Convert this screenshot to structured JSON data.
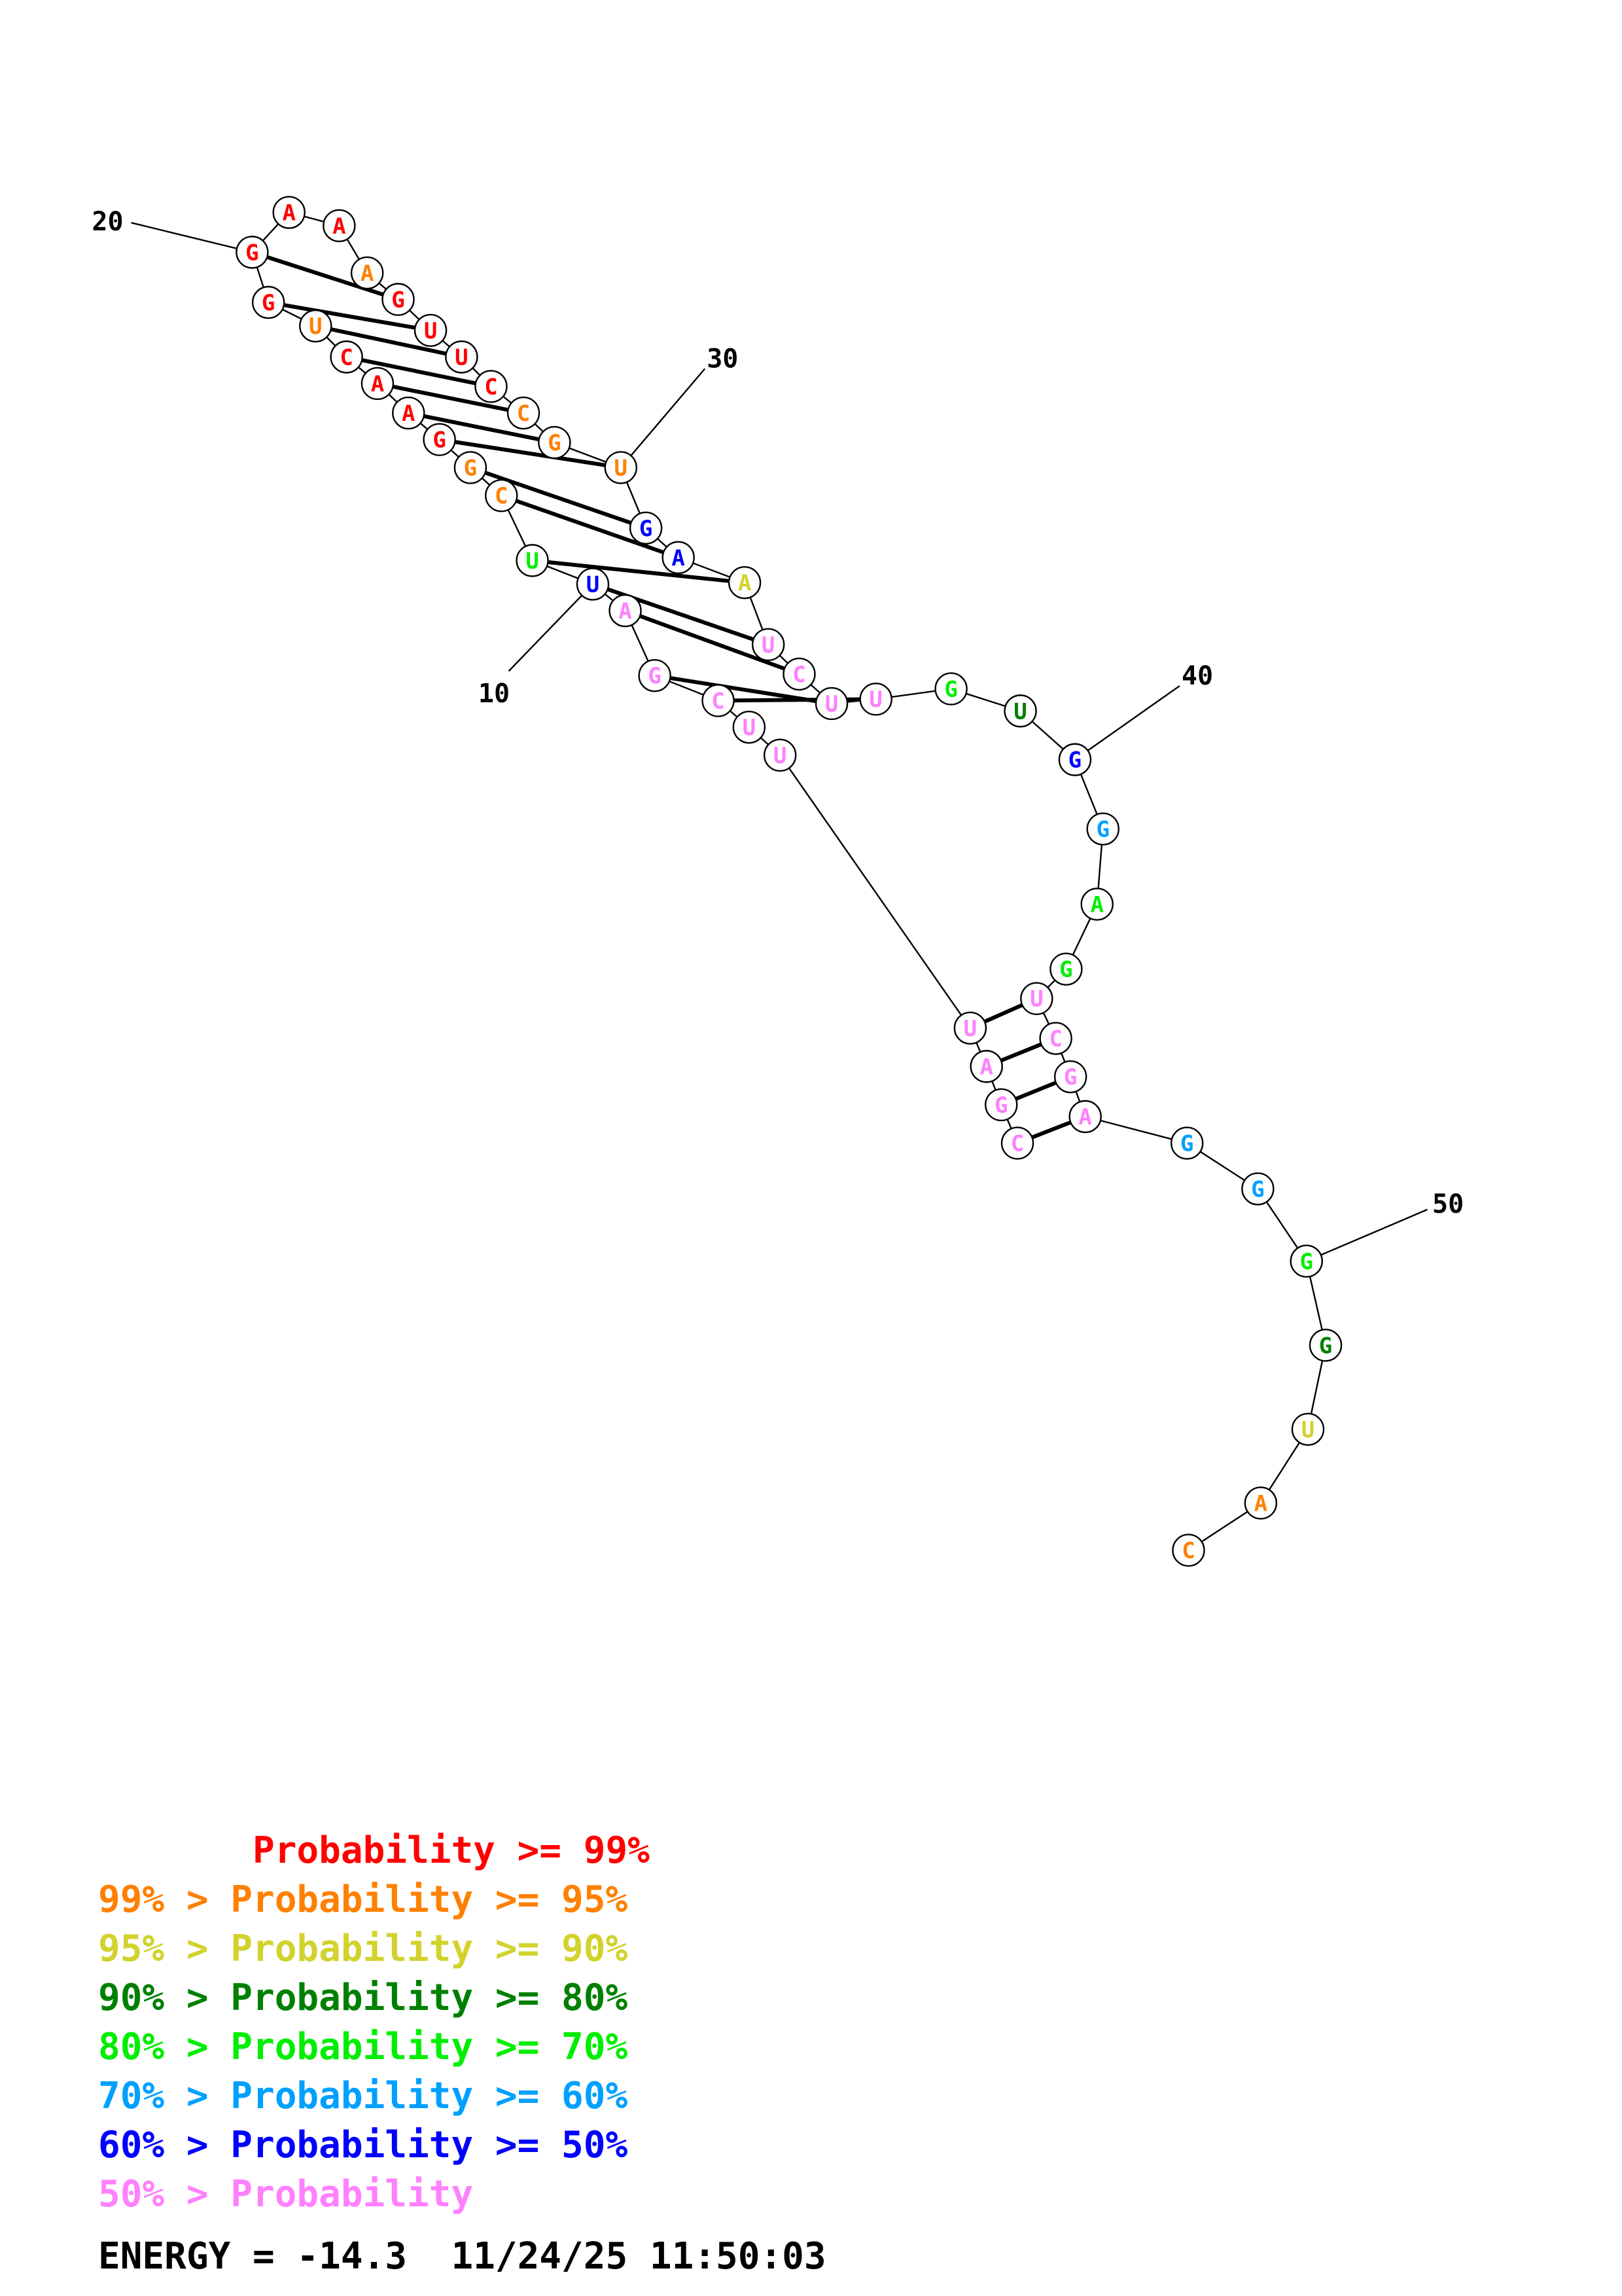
{
  "colors": {
    "red": "#ff0000",
    "orange": "#ff8000",
    "yellow": "#d2d22d",
    "darkgreen": "#008000",
    "green": "#00ee00",
    "cyan": "#00a0ff",
    "blue": "#0000ff",
    "pink": "#ff80ff"
  },
  "bases": [
    {
      "n": 1,
      "b": "C",
      "c": "pink"
    },
    {
      "n": 2,
      "b": "G",
      "c": "pink"
    },
    {
      "n": 3,
      "b": "A",
      "c": "pink"
    },
    {
      "n": 4,
      "b": "U",
      "c": "pink"
    },
    {
      "n": 5,
      "b": "U",
      "c": "pink"
    },
    {
      "n": 6,
      "b": "U",
      "c": "pink"
    },
    {
      "n": 7,
      "b": "C",
      "c": "pink"
    },
    {
      "n": 8,
      "b": "G",
      "c": "pink"
    },
    {
      "n": 9,
      "b": "A",
      "c": "pink"
    },
    {
      "n": 10,
      "b": "U",
      "c": "blue"
    },
    {
      "n": 11,
      "b": "U",
      "c": "green"
    },
    {
      "n": 12,
      "b": "C",
      "c": "orange"
    },
    {
      "n": 13,
      "b": "G",
      "c": "orange"
    },
    {
      "n": 14,
      "b": "G",
      "c": "red"
    },
    {
      "n": 15,
      "b": "A",
      "c": "red"
    },
    {
      "n": 16,
      "b": "A",
      "c": "red"
    },
    {
      "n": 17,
      "b": "C",
      "c": "red"
    },
    {
      "n": 18,
      "b": "U",
      "c": "orange"
    },
    {
      "n": 19,
      "b": "G",
      "c": "red"
    },
    {
      "n": 20,
      "b": "G",
      "c": "red"
    },
    {
      "n": 21,
      "b": "A",
      "c": "red"
    },
    {
      "n": 22,
      "b": "A",
      "c": "red"
    },
    {
      "n": 23,
      "b": "A",
      "c": "orange"
    },
    {
      "n": 24,
      "b": "G",
      "c": "red"
    },
    {
      "n": 25,
      "b": "U",
      "c": "red"
    },
    {
      "n": 26,
      "b": "U",
      "c": "red"
    },
    {
      "n": 27,
      "b": "C",
      "c": "red"
    },
    {
      "n": 28,
      "b": "C",
      "c": "orange"
    },
    {
      "n": 29,
      "b": "G",
      "c": "orange"
    },
    {
      "n": 30,
      "b": "U",
      "c": "orange"
    },
    {
      "n": 31,
      "b": "G",
      "c": "blue"
    },
    {
      "n": 32,
      "b": "A",
      "c": "blue"
    },
    {
      "n": 33,
      "b": "A",
      "c": "yellow"
    },
    {
      "n": 34,
      "b": "U",
      "c": "pink"
    },
    {
      "n": 35,
      "b": "C",
      "c": "pink"
    },
    {
      "n": 36,
      "b": "U",
      "c": "pink"
    },
    {
      "n": 37,
      "b": "U",
      "c": "pink"
    },
    {
      "n": 38,
      "b": "G",
      "c": "green"
    },
    {
      "n": 39,
      "b": "U",
      "c": "darkgreen"
    },
    {
      "n": 40,
      "b": "G",
      "c": "blue"
    },
    {
      "n": 41,
      "b": "G",
      "c": "cyan"
    },
    {
      "n": 42,
      "b": "A",
      "c": "green"
    },
    {
      "n": 43,
      "b": "G",
      "c": "green"
    },
    {
      "n": 44,
      "b": "U",
      "c": "pink"
    },
    {
      "n": 45,
      "b": "C",
      "c": "pink"
    },
    {
      "n": 46,
      "b": "G",
      "c": "pink"
    },
    {
      "n": 47,
      "b": "A",
      "c": "pink"
    },
    {
      "n": 48,
      "b": "G",
      "c": "cyan"
    },
    {
      "n": 49,
      "b": "G",
      "c": "cyan"
    },
    {
      "n": 50,
      "b": "G",
      "c": "green"
    },
    {
      "n": 51,
      "b": "G",
      "c": "darkgreen"
    },
    {
      "n": 52,
      "b": "U",
      "c": "yellow"
    },
    {
      "n": 53,
      "b": "A",
      "c": "orange"
    },
    {
      "n": 54,
      "b": "C",
      "c": "orange"
    }
  ],
  "pairs": [
    [
      1,
      47
    ],
    [
      2,
      46
    ],
    [
      3,
      45
    ],
    [
      4,
      44
    ],
    [
      7,
      37
    ],
    [
      8,
      36
    ],
    [
      9,
      35
    ],
    [
      10,
      34
    ],
    [
      11,
      33
    ],
    [
      12,
      32
    ],
    [
      13,
      31
    ],
    [
      14,
      30
    ],
    [
      15,
      29
    ],
    [
      16,
      28
    ],
    [
      17,
      27
    ],
    [
      18,
      26
    ],
    [
      19,
      25
    ],
    [
      20,
      24
    ]
  ],
  "position_labels": [
    "10",
    "20",
    "30",
    "40",
    "50"
  ],
  "legend": [
    {
      "text": "       Probability >= 99%",
      "c": "red"
    },
    {
      "text": "99% > Probability >= 95%",
      "c": "orange"
    },
    {
      "text": "95% > Probability >= 90%",
      "c": "yellow"
    },
    {
      "text": "90% > Probability >= 80%",
      "c": "darkgreen"
    },
    {
      "text": "80% > Probability >= 70%",
      "c": "green"
    },
    {
      "text": "70% > Probability >= 60%",
      "c": "cyan"
    },
    {
      "text": "60% > Probability >= 50%",
      "c": "blue"
    },
    {
      "text": "50% > Probability",
      "c": "pink"
    }
  ],
  "energy_line": "ENERGY = -14.3  11/24/25 11:50:03"
}
